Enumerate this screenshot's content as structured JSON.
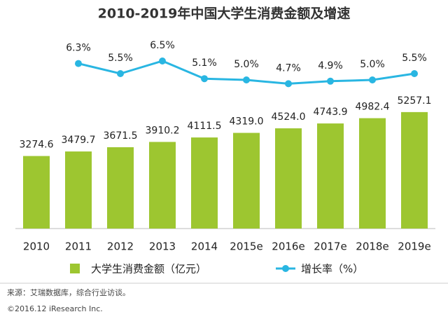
{
  "chart_data": {
    "type": "bar-line",
    "title": "2010-2019年中国大学生消费金额及增速",
    "categories": [
      "2010",
      "2011",
      "2012",
      "2013",
      "2014",
      "2015e",
      "2016e",
      "2017e",
      "2018e",
      "2019e"
    ],
    "series": [
      {
        "name": "大学生消费金额（亿元）",
        "type": "bar",
        "color": "#9dc630",
        "values": [
          3274.6,
          3479.7,
          3671.5,
          3910.2,
          4111.5,
          4319.0,
          4524.0,
          4743.9,
          4982.4,
          5257.1
        ],
        "value_labels": [
          "3274.6",
          "3479.7",
          "3671.5",
          "3910.2",
          "4111.5",
          "4319.0",
          "4524.0",
          "4743.9",
          "4982.4",
          "5257.1"
        ]
      },
      {
        "name": "增长率（%）",
        "type": "line",
        "axis": "y2",
        "color": "#29b6e2",
        "values": [
          null,
          6.3,
          5.5,
          6.5,
          5.1,
          5.0,
          4.7,
          4.9,
          5.0,
          5.5
        ],
        "value_labels": [
          null,
          "6.3%",
          "5.5%",
          "6.5%",
          "5.1%",
          "5.0%",
          "4.7%",
          "4.9%",
          "5.0%",
          "5.5%"
        ]
      }
    ],
    "ylim": [
      0,
      10000
    ],
    "y2lim": [
      3,
      8
    ],
    "source": "来源：艾瑞数据库，综合行业访谈。",
    "copyright": "©2016.12 iResearch Inc."
  }
}
